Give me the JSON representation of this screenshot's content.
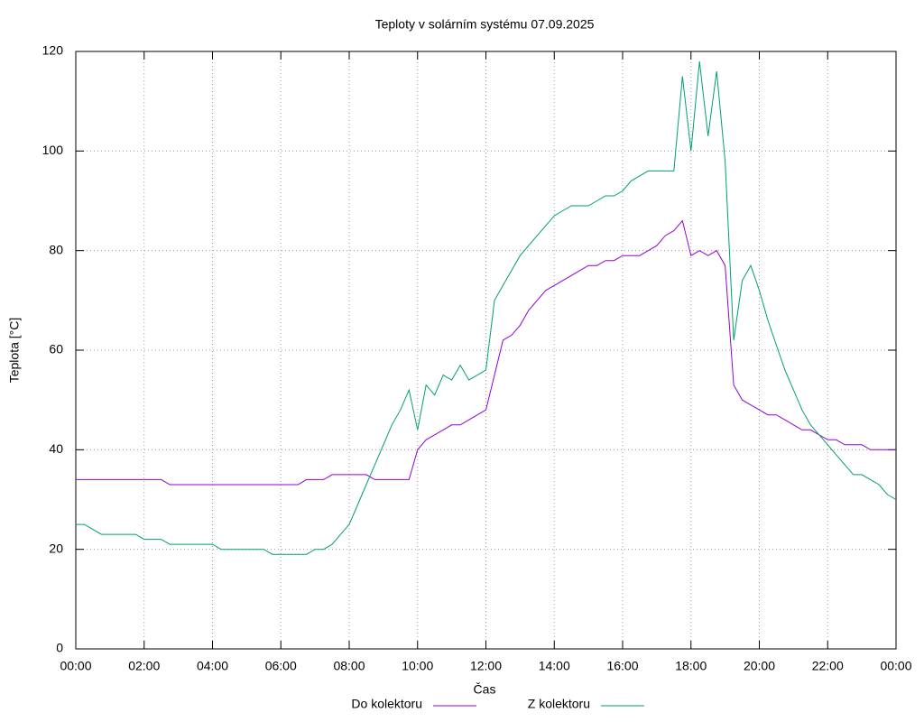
{
  "chart_data": {
    "type": "line",
    "title": "Teploty v solárním systému 07.09.2025",
    "x_label": "Čas",
    "y_label": "Teplota [°C]",
    "x": [
      0,
      0.25,
      0.5,
      0.75,
      1,
      1.25,
      1.5,
      1.75,
      2,
      2.25,
      2.5,
      2.75,
      3,
      3.25,
      3.5,
      3.75,
      4,
      4.25,
      4.5,
      4.75,
      5,
      5.25,
      5.5,
      5.75,
      6,
      6.25,
      6.5,
      6.75,
      7,
      7.25,
      7.5,
      7.75,
      8,
      8.25,
      8.5,
      8.75,
      9,
      9.25,
      9.5,
      9.75,
      10,
      10.25,
      10.5,
      10.75,
      11,
      11.25,
      11.5,
      11.75,
      12,
      12.25,
      12.5,
      12.75,
      13,
      13.25,
      13.5,
      13.75,
      14,
      14.25,
      14.5,
      14.75,
      15,
      15.25,
      15.5,
      15.75,
      16,
      16.25,
      16.5,
      16.75,
      17,
      17.25,
      17.5,
      17.75,
      18,
      18.25,
      18.5,
      18.75,
      19,
      19.25,
      19.5,
      19.75,
      20,
      20.25,
      20.5,
      20.75,
      21,
      21.25,
      21.5,
      21.75,
      22,
      22.25,
      22.5,
      22.75,
      23,
      23.25,
      23.5,
      23.75,
      24
    ],
    "series": [
      {
        "name": "Do kolektoru",
        "color": "#9400d3",
        "values": [
          34,
          34,
          34,
          34,
          34,
          34,
          34,
          34,
          34,
          34,
          34,
          33,
          33,
          33,
          33,
          33,
          33,
          33,
          33,
          33,
          33,
          33,
          33,
          33,
          33,
          33,
          33,
          34,
          34,
          34,
          35,
          35,
          35,
          35,
          35,
          34,
          34,
          34,
          34,
          34,
          40,
          42,
          43,
          44,
          45,
          45,
          46,
          47,
          48,
          55,
          62,
          63,
          65,
          68,
          70,
          72,
          73,
          74,
          75,
          76,
          77,
          77,
          78,
          78,
          79,
          79,
          79,
          80,
          81,
          83,
          84,
          86,
          79,
          80,
          79,
          80,
          77,
          53,
          50,
          49,
          48,
          47,
          47,
          46,
          45,
          44,
          44,
          43,
          42,
          42,
          41,
          41,
          41,
          40,
          40,
          40,
          40
        ]
      },
      {
        "name": "Z kolektoru",
        "color": "#009e73",
        "values": [
          25,
          25,
          24,
          23,
          23,
          23,
          23,
          23,
          22,
          22,
          22,
          21,
          21,
          21,
          21,
          21,
          21,
          20,
          20,
          20,
          20,
          20,
          20,
          19,
          19,
          19,
          19,
          19,
          20,
          20,
          21,
          23,
          25,
          29,
          33,
          37,
          41,
          45,
          48,
          52,
          44,
          53,
          51,
          55,
          54,
          57,
          54,
          55,
          56,
          70,
          73,
          76,
          79,
          81,
          83,
          85,
          87,
          88,
          89,
          89,
          89,
          90,
          91,
          91,
          92,
          94,
          95,
          96,
          96,
          96,
          96,
          115,
          100,
          118,
          103,
          116,
          98,
          62,
          74,
          77,
          72,
          66,
          61,
          56,
          52,
          48,
          45,
          43,
          41,
          39,
          37,
          35,
          35,
          34,
          33,
          31,
          30
        ]
      }
    ],
    "xlim": [
      0,
      24
    ],
    "xticks": [
      {
        "value": 0,
        "label": "00:00"
      },
      {
        "value": 2,
        "label": "02:00"
      },
      {
        "value": 4,
        "label": "04:00"
      },
      {
        "value": 6,
        "label": "06:00"
      },
      {
        "value": 8,
        "label": "08:00"
      },
      {
        "value": 10,
        "label": "10:00"
      },
      {
        "value": 12,
        "label": "12:00"
      },
      {
        "value": 14,
        "label": "14:00"
      },
      {
        "value": 16,
        "label": "16:00"
      },
      {
        "value": 18,
        "label": "18:00"
      },
      {
        "value": 20,
        "label": "20:00"
      },
      {
        "value": 22,
        "label": "22:00"
      },
      {
        "value": 24,
        "label": "00:00"
      }
    ],
    "ylim": [
      0,
      120
    ],
    "yticks": [
      0,
      20,
      40,
      60,
      80,
      100,
      120
    ],
    "grid": true,
    "legend": "bottom"
  }
}
